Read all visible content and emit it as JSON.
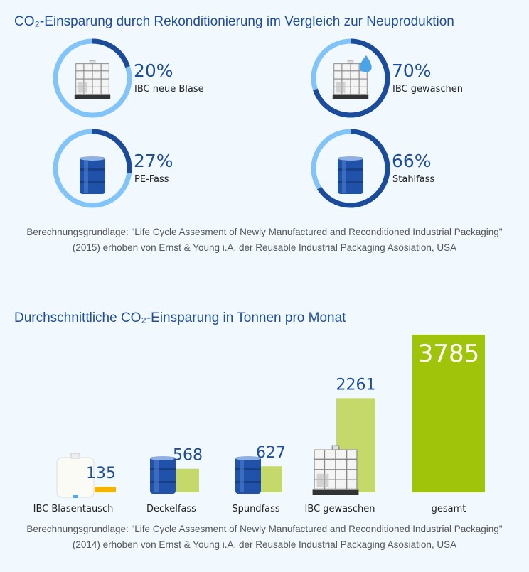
{
  "chart_data": [
    {
      "type": "donut",
      "title": "CO₂-Einsparung durch Rekonditionierung im Vergleich zur Neuproduktion",
      "categories": [
        "IBC neue Blase",
        "IBC gewaschen",
        "PE-Fass",
        "Stahlfass"
      ],
      "values": [
        20,
        70,
        27,
        66
      ],
      "value_labels": [
        "20%",
        "70%",
        "27%",
        "66%"
      ],
      "color": "#1c4b9a",
      "track_color": "#82c4f8",
      "note": "Berechnungsgrundlage: \"Life Cycle Assesment of Newly Manufactured and Reconditioned Industrial Packaging\" (2015) erhoben von Ernst & Young i.A. der Reusable Industrial Packaging Asosiation, USA"
    },
    {
      "type": "bar",
      "title": "Durchschnittliche CO₂-Einsparung in Tonnen pro Monat",
      "categories": [
        "IBC Blasentausch",
        "Deckelfass",
        "Spundfass",
        "IBC gewaschen",
        "gesamt"
      ],
      "values": [
        135,
        568,
        627,
        2261,
        3785
      ],
      "colors": [
        "#f6b400",
        "#c5d86a",
        "#c5d86a",
        "#c5d86a",
        "#a0c40a"
      ],
      "note": "Berechnungsgrundlage: \"Life Cycle Assesment of Newly Manufactured and Reconditioned Industrial Packaging\" (2014) erhoben von Ernst & Young i.A. der Reusable Industrial Packaging Asosiation, USA"
    }
  ]
}
